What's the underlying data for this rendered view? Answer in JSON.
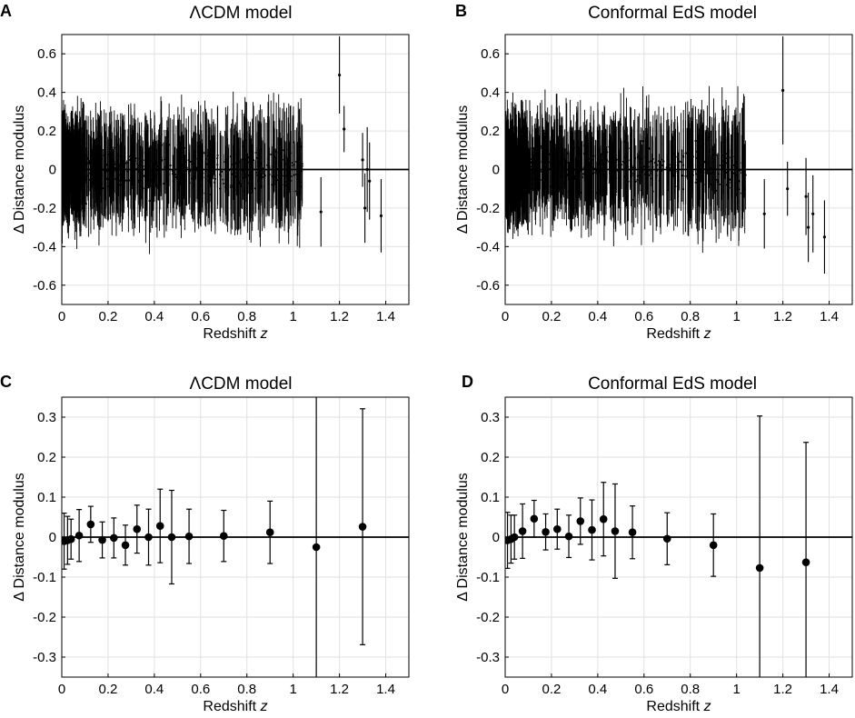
{
  "figure": {
    "panels": [
      {
        "letter": "A",
        "title": "ΛCDM model",
        "chart_data": {
          "type": "scatter",
          "title": "ΛCDM model",
          "xlabel": "Redshift z",
          "ylabel": "Δ Distance modulus",
          "xlim": [
            0,
            1.5
          ],
          "ylim": [
            -0.7,
            0.7
          ],
          "xticks": [
            "0",
            "0.2",
            "0.4",
            "0.6",
            "0.8",
            "1",
            "1.2",
            "1.4"
          ],
          "yticks": [
            "0.6",
            "0.4",
            "0.2",
            "0",
            "-0.2",
            "-0.4",
            "-0.6"
          ],
          "grid": true,
          "reference_line_y": 0,
          "dense_points_note": "individual supernova residuals with error bars, densely populated for 0 < z < 1.05",
          "sparse_points": [
            {
              "x": 1.12,
              "y": -0.22,
              "err": 0.18
            },
            {
              "x": 1.2,
              "y": 0.49,
              "err": 0.2
            },
            {
              "x": 1.22,
              "y": 0.21,
              "err": 0.12
            },
            {
              "x": 1.3,
              "y": 0.05,
              "err": 0.14
            },
            {
              "x": 1.31,
              "y": -0.2,
              "err": 0.18
            },
            {
              "x": 1.32,
              "y": 0.0,
              "err": 0.22
            },
            {
              "x": 1.33,
              "y": -0.06,
              "err": 0.2
            },
            {
              "x": 1.38,
              "y": -0.24,
              "err": 0.19
            }
          ]
        }
      },
      {
        "letter": "B",
        "title": "Conformal EdS model",
        "chart_data": {
          "type": "scatter",
          "title": "Conformal EdS model",
          "xlabel": "Redshift z",
          "ylabel": "Δ Distance modulus",
          "xlim": [
            0,
            1.5
          ],
          "ylim": [
            -0.7,
            0.7
          ],
          "xticks": [
            "0",
            "0.2",
            "0.4",
            "0.6",
            "0.8",
            "1",
            "1.2",
            "1.4"
          ],
          "yticks": [
            "0.6",
            "0.4",
            "0.2",
            "0",
            "-0.2",
            "-0.4",
            "-0.6"
          ],
          "grid": true,
          "reference_line_y": 0,
          "dense_points_note": "individual supernova residuals with error bars, densely populated for 0 < z < 1.05",
          "sparse_points": [
            {
              "x": 1.12,
              "y": -0.23,
              "err": 0.18
            },
            {
              "x": 1.2,
              "y": 0.41,
              "err": 0.28
            },
            {
              "x": 1.22,
              "y": -0.1,
              "err": 0.14
            },
            {
              "x": 1.3,
              "y": -0.14,
              "err": 0.2
            },
            {
              "x": 1.31,
              "y": -0.3,
              "err": 0.18
            },
            {
              "x": 1.33,
              "y": -0.23,
              "err": 0.2
            },
            {
              "x": 1.38,
              "y": -0.35,
              "err": 0.19
            }
          ]
        }
      },
      {
        "letter": "C",
        "title": "ΛCDM model",
        "chart_data": {
          "type": "scatter",
          "title": "ΛCDM model",
          "xlabel": "Redshift z",
          "ylabel": "Δ Distance modulus",
          "xlim": [
            0,
            1.5
          ],
          "ylim": [
            -0.35,
            0.35
          ],
          "xticks": [
            "0",
            "0.2",
            "0.4",
            "0.6",
            "0.8",
            "1",
            "1.2",
            "1.4"
          ],
          "yticks": [
            "0.3",
            "0.2",
            "0.1",
            "0",
            "-0.1",
            "-0.2",
            "-0.3"
          ],
          "grid": true,
          "reference_line_y": 0,
          "points": [
            {
              "x": 0.01,
              "y": -0.01,
              "err": 0.07
            },
            {
              "x": 0.025,
              "y": -0.008,
              "err": 0.06
            },
            {
              "x": 0.04,
              "y": -0.005,
              "err": 0.05
            },
            {
              "x": 0.075,
              "y": 0.004,
              "err": 0.065
            },
            {
              "x": 0.125,
              "y": 0.032,
              "err": 0.045
            },
            {
              "x": 0.175,
              "y": -0.007,
              "err": 0.045
            },
            {
              "x": 0.225,
              "y": -0.002,
              "err": 0.05
            },
            {
              "x": 0.275,
              "y": -0.02,
              "err": 0.05
            },
            {
              "x": 0.325,
              "y": 0.02,
              "err": 0.06
            },
            {
              "x": 0.375,
              "y": 0.0,
              "err": 0.07
            },
            {
              "x": 0.425,
              "y": 0.028,
              "err": 0.092
            },
            {
              "x": 0.475,
              "y": 0.0,
              "err": 0.117
            },
            {
              "x": 0.55,
              "y": 0.002,
              "err": 0.068
            },
            {
              "x": 0.7,
              "y": 0.003,
              "err": 0.064
            },
            {
              "x": 0.9,
              "y": 0.012,
              "err": 0.078
            },
            {
              "x": 1.1,
              "y": -0.025,
              "err": 0.45
            },
            {
              "x": 1.3,
              "y": 0.026,
              "err": 0.295
            }
          ]
        }
      },
      {
        "letter": "D",
        "title": "Conformal EdS model",
        "chart_data": {
          "type": "scatter",
          "title": "Conformal EdS model",
          "xlabel": "Redshift z",
          "ylabel": "Δ Distance modulus",
          "xlim": [
            0,
            1.5
          ],
          "ylim": [
            -0.35,
            0.35
          ],
          "xticks": [
            "0",
            "0.2",
            "0.4",
            "0.6",
            "0.8",
            "1",
            "1.2",
            "1.4"
          ],
          "yticks": [
            "0.3",
            "0.2",
            "0.1",
            "0",
            "-0.1",
            "-0.2",
            "-0.3"
          ],
          "grid": true,
          "reference_line_y": 0,
          "points": [
            {
              "x": 0.01,
              "y": -0.008,
              "err": 0.07
            },
            {
              "x": 0.025,
              "y": -0.005,
              "err": 0.06
            },
            {
              "x": 0.04,
              "y": 0.0,
              "err": 0.055
            },
            {
              "x": 0.075,
              "y": 0.015,
              "err": 0.068
            },
            {
              "x": 0.125,
              "y": 0.046,
              "err": 0.046
            },
            {
              "x": 0.175,
              "y": 0.013,
              "err": 0.045
            },
            {
              "x": 0.225,
              "y": 0.02,
              "err": 0.05
            },
            {
              "x": 0.275,
              "y": 0.002,
              "err": 0.053
            },
            {
              "x": 0.325,
              "y": 0.04,
              "err": 0.058
            },
            {
              "x": 0.375,
              "y": 0.018,
              "err": 0.075
            },
            {
              "x": 0.425,
              "y": 0.045,
              "err": 0.092
            },
            {
              "x": 0.475,
              "y": 0.015,
              "err": 0.118
            },
            {
              "x": 0.55,
              "y": 0.012,
              "err": 0.066
            },
            {
              "x": 0.7,
              "y": -0.004,
              "err": 0.065
            },
            {
              "x": 0.9,
              "y": -0.02,
              "err": 0.078
            },
            {
              "x": 1.1,
              "y": -0.077,
              "err": 0.38
            },
            {
              "x": 1.3,
              "y": -0.063,
              "err": 0.3
            }
          ]
        }
      }
    ]
  }
}
